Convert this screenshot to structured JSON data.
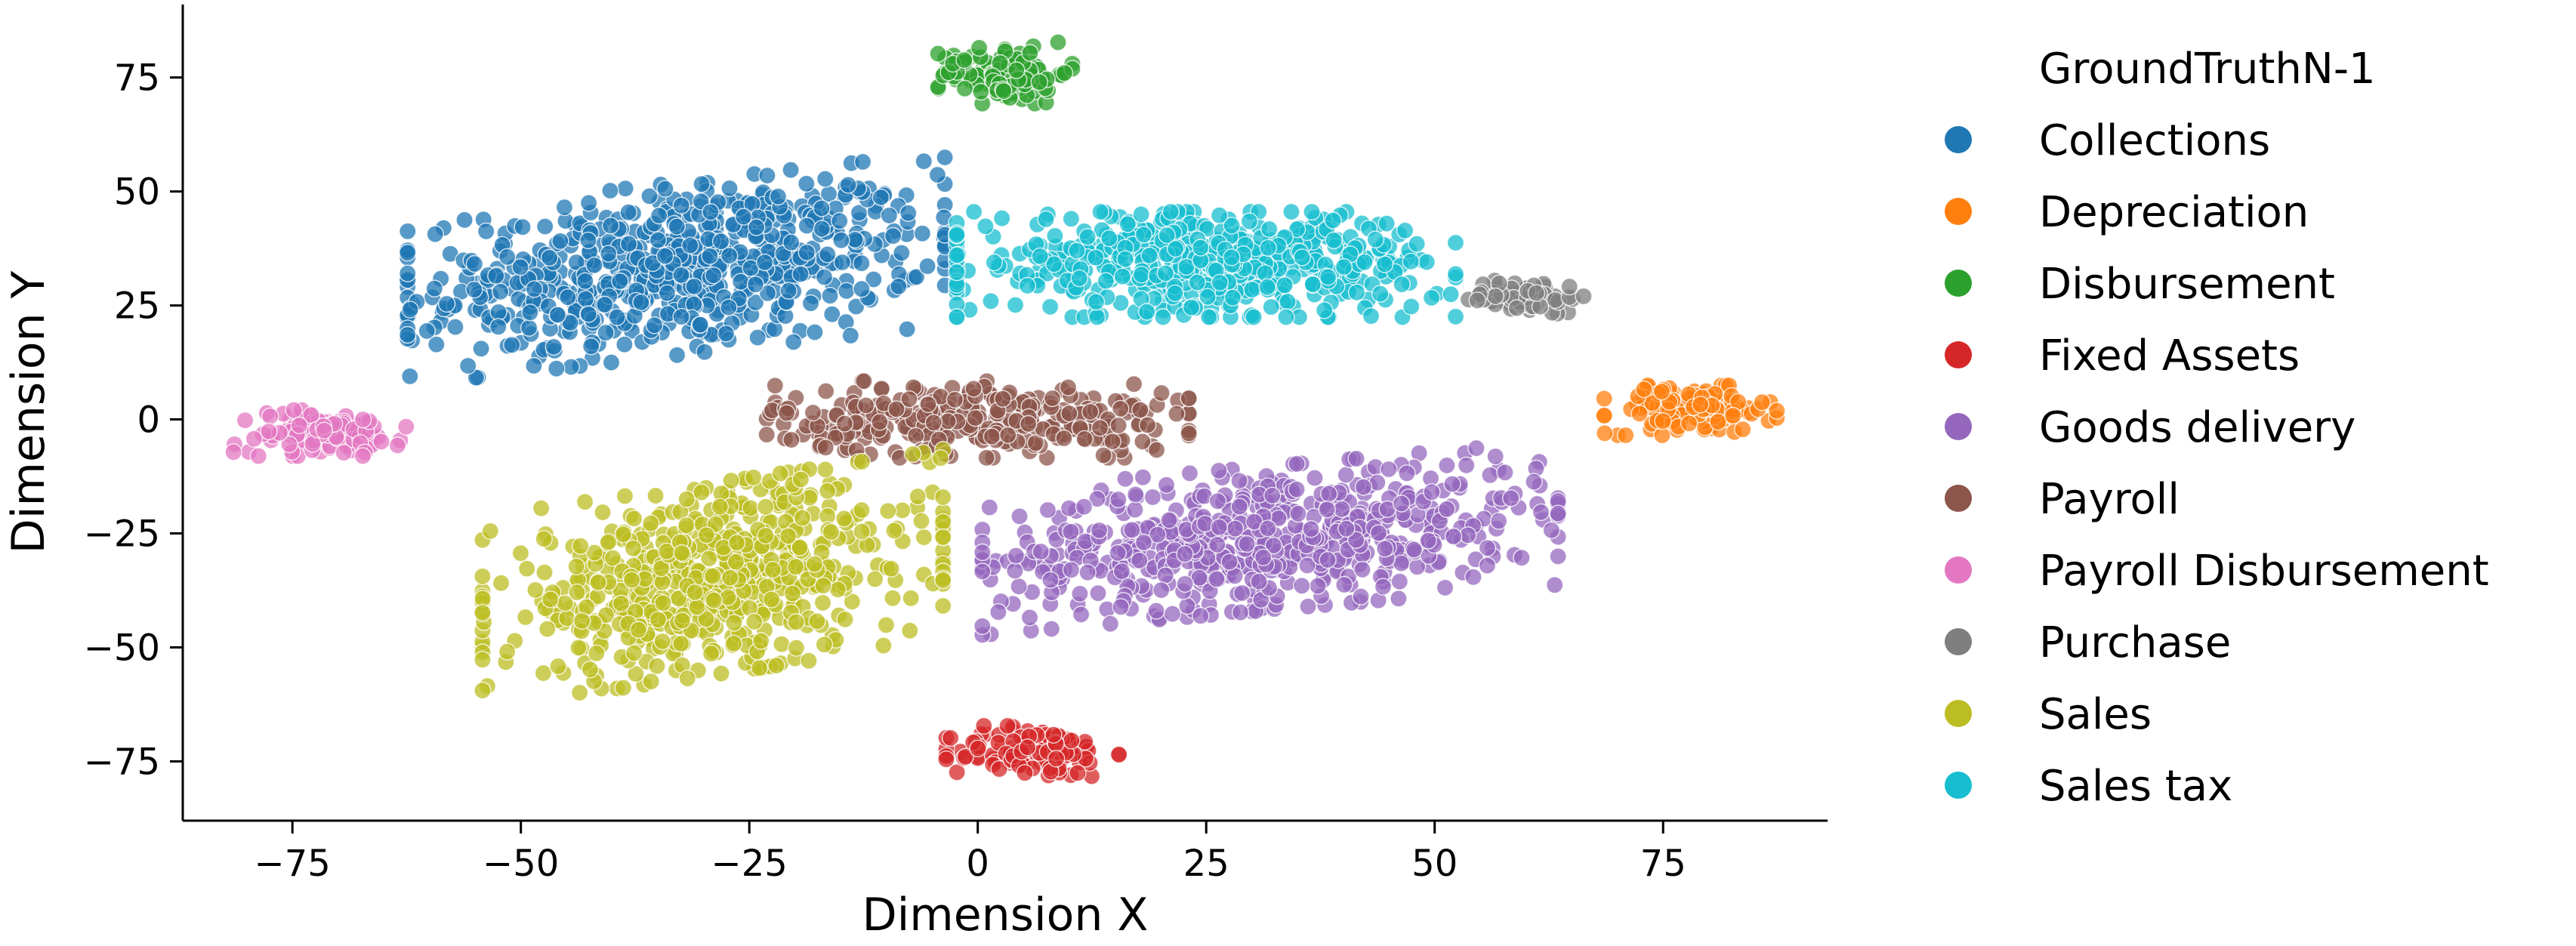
{
  "chart_data": {
    "type": "scatter",
    "title": "",
    "xlabel": "Dimension X",
    "ylabel": "Dimension Y",
    "xlim": [
      -87,
      93
    ],
    "ylim": [
      -88,
      91
    ],
    "xticks": [
      -75,
      -50,
      -25,
      0,
      25,
      50,
      75
    ],
    "yticks": [
      -75,
      -50,
      -25,
      0,
      25,
      50,
      75
    ],
    "xtick_labels": [
      "−75",
      "−50",
      "−25",
      "0",
      "25",
      "50",
      "75"
    ],
    "ytick_labels": [
      "−75",
      "−50",
      "−25",
      "0",
      "25",
      "50",
      "75"
    ],
    "grid": false,
    "legend": {
      "title": "GroundTruthN-1",
      "placement": "outside-right"
    },
    "series": [
      {
        "name": "Collections",
        "color": "#1f77b4",
        "center": [
          -33,
          33
        ],
        "spread": [
          14,
          9
        ],
        "count": 700,
        "shape": "tilt"
      },
      {
        "name": "Depreciation",
        "color": "#ff7f0e",
        "center": [
          78,
          2
        ],
        "spread": [
          4.5,
          2.6
        ],
        "count": 130,
        "shape": "ellipse"
      },
      {
        "name": "Disbursement",
        "color": "#2ca02c",
        "center": [
          3,
          76
        ],
        "spread": [
          3.5,
          3.2
        ],
        "count": 120,
        "shape": "ellipse"
      },
      {
        "name": "Fixed Assets",
        "color": "#d62728",
        "center": [
          6,
          -73
        ],
        "spread": [
          4.5,
          2.8
        ],
        "count": 120,
        "shape": "ellipse"
      },
      {
        "name": "Goods delivery",
        "color": "#9467bd",
        "center": [
          32,
          -26
        ],
        "spread": [
          15,
          7.5
        ],
        "count": 650,
        "shape": "tilt"
      },
      {
        "name": "Payroll",
        "color": "#8c564b",
        "center": [
          0,
          0
        ],
        "spread": [
          11,
          4
        ],
        "count": 320,
        "shape": "ellipse"
      },
      {
        "name": "Payroll Disbursement",
        "color": "#e377c2",
        "center": [
          -72,
          -3
        ],
        "spread": [
          4.5,
          2.4
        ],
        "count": 120,
        "shape": "ellipse"
      },
      {
        "name": "Purchase",
        "color": "#7f7f7f",
        "center": [
          60,
          27
        ],
        "spread": [
          3,
          1.8
        ],
        "count": 70,
        "shape": "ellipse"
      },
      {
        "name": "Sales",
        "color": "#bcbd22",
        "center": [
          -29,
          -35
        ],
        "spread": [
          12,
          10
        ],
        "count": 650,
        "shape": "tilt"
      },
      {
        "name": "Sales tax",
        "color": "#17becf",
        "center": [
          25,
          34
        ],
        "spread": [
          13,
          5.5
        ],
        "count": 550,
        "shape": "ellipse"
      }
    ]
  }
}
